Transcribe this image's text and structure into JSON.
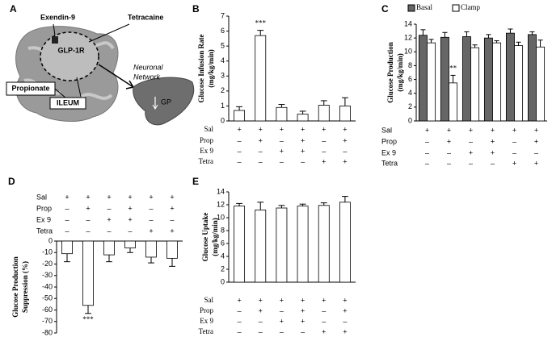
{
  "panel_a": {
    "panel": "A",
    "exendin": "Exendin-9",
    "tetracaine": "Tetracaine",
    "receptor": "GLP-1R",
    "network": [
      "Neuronal",
      "Network"
    ],
    "propionate": "Propionate",
    "ileum": "ILEUM",
    "gp": "GP"
  },
  "chart_data": [
    {
      "type": "bar",
      "panel": "B",
      "ylabel": [
        "Glucose Infusion Rate",
        "(mg/kg/min)"
      ],
      "ylim": [
        0,
        7
      ],
      "yticks": [
        0,
        1,
        2,
        3,
        4,
        5,
        6,
        7
      ],
      "series": [
        {
          "color": "#ffffff",
          "values": [
            0.7,
            5.7,
            0.9,
            0.45,
            1.05,
            1.0
          ],
          "errors": [
            0.25,
            0.35,
            0.2,
            0.2,
            0.3,
            0.55
          ],
          "significance": [
            null,
            "***",
            null,
            null,
            null,
            null
          ]
        }
      ],
      "treatments": [
        {
          "name": "Sal",
          "signs": [
            "+",
            "+",
            "+",
            "+",
            "+",
            "+"
          ]
        },
        {
          "name": "Prop",
          "signs": [
            "–",
            "+",
            "–",
            "+",
            "–",
            "+"
          ]
        },
        {
          "name": "Ex 9",
          "signs": [
            "–",
            "–",
            "+",
            "+",
            "–",
            "–"
          ]
        },
        {
          "name": "Tetra",
          "signs": [
            "–",
            "–",
            "–",
            "–",
            "+",
            "+"
          ]
        }
      ]
    },
    {
      "type": "bar",
      "panel": "C",
      "ylabel": [
        "Glucose Production",
        "(mg/kg/min)"
      ],
      "ylim": [
        0,
        14
      ],
      "yticks": [
        0,
        2,
        4,
        6,
        8,
        10,
        12,
        14
      ],
      "series": [
        {
          "name": "Basal",
          "color": "#666666",
          "values": [
            12.4,
            12.1,
            12.2,
            12.0,
            12.7,
            12.5
          ],
          "errors": [
            0.8,
            0.7,
            0.7,
            0.5,
            0.6,
            0.4
          ],
          "significance": [
            null,
            null,
            null,
            null,
            null,
            null
          ]
        },
        {
          "name": "Clamp",
          "color": "#ffffff",
          "values": [
            11.3,
            5.5,
            10.6,
            11.3,
            10.9,
            10.7
          ],
          "errors": [
            0.5,
            1.1,
            0.4,
            0.3,
            0.5,
            1.0
          ],
          "significance": [
            null,
            "**",
            null,
            null,
            null,
            null
          ]
        }
      ],
      "treatments": [
        {
          "name": "Sal",
          "signs": [
            "+",
            "+",
            "+",
            "+",
            "+",
            "+"
          ]
        },
        {
          "name": "Prop",
          "signs": [
            "–",
            "+",
            "–",
            "+",
            "–",
            "+"
          ]
        },
        {
          "name": "Ex 9",
          "signs": [
            "–",
            "–",
            "+",
            "+",
            "–",
            "–"
          ]
        },
        {
          "name": "Tetra",
          "signs": [
            "–",
            "–",
            "–",
            "–",
            "+",
            "+"
          ]
        }
      ]
    },
    {
      "type": "bar",
      "panel": "D",
      "ylabel": [
        "Glucose Production",
        "Suppression (%)"
      ],
      "ylim": [
        -80,
        0
      ],
      "yticks": [
        0,
        -10,
        -20,
        -30,
        -40,
        -50,
        -60,
        -70,
        -80
      ],
      "series": [
        {
          "color": "#ffffff",
          "values": [
            -11,
            -56,
            -12,
            -6,
            -14,
            -15
          ],
          "errors": [
            7,
            7,
            6,
            4,
            5,
            7
          ],
          "significance": [
            null,
            "***",
            null,
            null,
            null,
            null
          ]
        }
      ],
      "treatments": [
        {
          "name": "Sal",
          "signs": [
            "+",
            "+",
            "+",
            "+",
            "+",
            "+"
          ]
        },
        {
          "name": "Prop",
          "signs": [
            "–",
            "+",
            "–",
            "+",
            "–",
            "+"
          ]
        },
        {
          "name": "Ex 9",
          "signs": [
            "–",
            "–",
            "+",
            "+",
            "–",
            "–"
          ]
        },
        {
          "name": "Tetra",
          "signs": [
            "–",
            "–",
            "–",
            "–",
            "+",
            "+"
          ]
        }
      ]
    },
    {
      "type": "bar",
      "panel": "E",
      "ylabel": [
        "Glucose Uptake",
        "(mg/kg/min)"
      ],
      "ylim": [
        0,
        14
      ],
      "yticks": [
        0,
        2,
        4,
        6,
        8,
        10,
        12,
        14
      ],
      "series": [
        {
          "color": "#ffffff",
          "values": [
            11.8,
            11.2,
            11.5,
            11.8,
            11.9,
            12.4
          ],
          "errors": [
            0.4,
            1.2,
            0.4,
            0.3,
            0.4,
            0.9
          ],
          "significance": [
            null,
            null,
            null,
            null,
            null,
            null
          ]
        }
      ],
      "treatments": [
        {
          "name": "Sal",
          "signs": [
            "+",
            "+",
            "+",
            "+",
            "+",
            "+"
          ]
        },
        {
          "name": "Prop",
          "signs": [
            "–",
            "+",
            "–",
            "+",
            "–",
            "+"
          ]
        },
        {
          "name": "Ex 9",
          "signs": [
            "–",
            "–",
            "+",
            "+",
            "–",
            "–"
          ]
        },
        {
          "name": "Tetra",
          "signs": [
            "–",
            "–",
            "–",
            "–",
            "+",
            "+"
          ]
        }
      ]
    }
  ]
}
